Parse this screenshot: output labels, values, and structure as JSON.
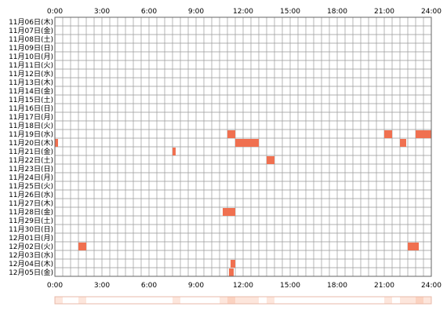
{
  "chart_data": {
    "type": "heatmap",
    "title": "",
    "xlabel": "",
    "ylabel": "",
    "x_range_hours": [
      0,
      24
    ],
    "cell_minutes": 30,
    "x_tick_labels": [
      "0:00",
      "3:00",
      "6:00",
      "9:00",
      "12:00",
      "15:00",
      "18:00",
      "21:00",
      "24:00"
    ],
    "x_tick_hours": [
      0,
      3,
      6,
      9,
      12,
      15,
      18,
      21,
      24
    ],
    "rows": [
      "11月06日(木)",
      "11月07日(金)",
      "11月08日(土)",
      "11月09日(日)",
      "11月10日(月)",
      "11月11日(火)",
      "11月12日(水)",
      "11月13日(木)",
      "11月14日(金)",
      "11月15日(土)",
      "11月16日(日)",
      "11月17日(月)",
      "11月18日(火)",
      "11月19日(水)",
      "11月20日(木)",
      "11月21日(金)",
      "11月22日(土)",
      "11月23日(日)",
      "11月24日(月)",
      "11月25日(火)",
      "11月26日(水)",
      "11月27日(木)",
      "11月28日(金)",
      "11月29日(土)",
      "11月30日(日)",
      "12月01日(月)",
      "12月02日(火)",
      "12月03日(水)",
      "12月04日(木)",
      "12月05日(金)"
    ],
    "events": [
      {
        "row": 13,
        "start": 11.0,
        "end": 11.5
      },
      {
        "row": 13,
        "start": 21.0,
        "end": 21.5
      },
      {
        "row": 13,
        "start": 23.0,
        "end": 24.0
      },
      {
        "row": 14,
        "start": 0.0,
        "end": 0.2
      },
      {
        "row": 14,
        "start": 11.5,
        "end": 12.5
      },
      {
        "row": 14,
        "start": 12.5,
        "end": 13.0
      },
      {
        "row": 14,
        "start": 22.0,
        "end": 22.4
      },
      {
        "row": 15,
        "start": 7.5,
        "end": 7.7
      },
      {
        "row": 16,
        "start": 13.5,
        "end": 14.0
      },
      {
        "row": 22,
        "start": 10.7,
        "end": 11.0
      },
      {
        "row": 22,
        "start": 11.0,
        "end": 11.5
      },
      {
        "row": 26,
        "start": 1.5,
        "end": 2.0
      },
      {
        "row": 26,
        "start": 22.5,
        "end": 23.0
      },
      {
        "row": 26,
        "start": 23.0,
        "end": 23.2
      },
      {
        "row": 28,
        "start": 11.2,
        "end": 11.5
      },
      {
        "row": 29,
        "start": 11.1,
        "end": 11.4
      }
    ],
    "grid": true,
    "colors": {
      "event": "#f07050",
      "grid": "#999999",
      "border": "#666666",
      "summary_light": "#fde6dc",
      "summary_mid": "#fbd2c0",
      "summary_border": "#e8b8a8"
    }
  }
}
